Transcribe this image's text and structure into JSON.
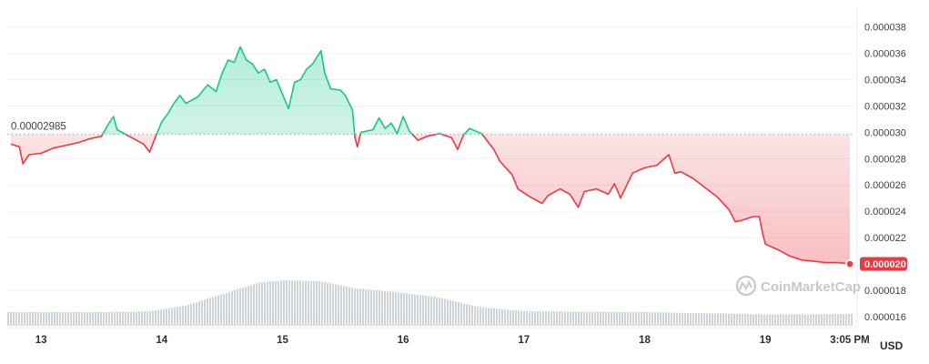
{
  "chart_data": {
    "type": "area",
    "reference_price": 2.985e-05,
    "reference_label": "0.00002985",
    "current_price": 2e-05,
    "current_label": "0.000020",
    "unit_label": "USD",
    "watermark": "CoinMarketCap",
    "ylim": [
      1.53e-05,
      3.95e-05
    ],
    "y_ticks": [
      {
        "value": 3.8e-05,
        "label": "0.000038"
      },
      {
        "value": 3.6e-05,
        "label": "0.000036"
      },
      {
        "value": 3.4e-05,
        "label": "0.000034"
      },
      {
        "value": 3.2e-05,
        "label": "0.000032"
      },
      {
        "value": 3e-05,
        "label": "0.000030"
      },
      {
        "value": 2.8e-05,
        "label": "0.000028"
      },
      {
        "value": 2.6e-05,
        "label": "0.000026"
      },
      {
        "value": 2.4e-05,
        "label": "0.000024"
      },
      {
        "value": 2.2e-05,
        "label": "0.000022"
      },
      {
        "value": 1.8e-05,
        "label": "0.000018"
      },
      {
        "value": 1.6e-05,
        "label": "0.000016"
      }
    ],
    "x_ticks": [
      {
        "t": 13,
        "label": "13"
      },
      {
        "t": 14,
        "label": "14"
      },
      {
        "t": 15,
        "label": "15"
      },
      {
        "t": 16,
        "label": "16"
      },
      {
        "t": 17,
        "label": "17"
      },
      {
        "t": 18,
        "label": "18"
      },
      {
        "t": 19,
        "label": "19"
      },
      {
        "t": 19.7,
        "label": "3:05 PM"
      }
    ],
    "xlim": [
      12.72,
      19.73
    ],
    "colors": {
      "up": "#16c784",
      "down": "#ea3943",
      "volume": "#cfd3da",
      "grid": "#eff2f5",
      "axis": "#e8ebef"
    },
    "price_series": [
      [
        12.75,
        2.91e-05
      ],
      [
        12.82,
        2.89e-05
      ],
      [
        12.85,
        2.76e-05
      ],
      [
        12.9,
        2.83e-05
      ],
      [
        13.0,
        2.84e-05
      ],
      [
        13.1,
        2.88e-05
      ],
      [
        13.2,
        2.9e-05
      ],
      [
        13.3,
        2.92e-05
      ],
      [
        13.4,
        2.95e-05
      ],
      [
        13.5,
        2.97e-05
      ],
      [
        13.55,
        3.05e-05
      ],
      [
        13.6,
        3.12e-05
      ],
      [
        13.63,
        3.02e-05
      ],
      [
        13.75,
        2.96e-05
      ],
      [
        13.85,
        2.91e-05
      ],
      [
        13.9,
        2.85e-05
      ],
      [
        13.95,
        2.97e-05
      ],
      [
        14.0,
        3.08e-05
      ],
      [
        14.05,
        3.14e-05
      ],
      [
        14.1,
        3.22e-05
      ],
      [
        14.15,
        3.28e-05
      ],
      [
        14.2,
        3.22e-05
      ],
      [
        14.3,
        3.27e-05
      ],
      [
        14.38,
        3.36e-05
      ],
      [
        14.45,
        3.31e-05
      ],
      [
        14.5,
        3.45e-05
      ],
      [
        14.55,
        3.55e-05
      ],
      [
        14.6,
        3.53e-05
      ],
      [
        14.65,
        3.65e-05
      ],
      [
        14.7,
        3.55e-05
      ],
      [
        14.75,
        3.52e-05
      ],
      [
        14.8,
        3.45e-05
      ],
      [
        14.85,
        3.48e-05
      ],
      [
        14.9,
        3.38e-05
      ],
      [
        14.95,
        3.4e-05
      ],
      [
        15.05,
        3.18e-05
      ],
      [
        15.1,
        3.38e-05
      ],
      [
        15.15,
        3.4e-05
      ],
      [
        15.2,
        3.48e-05
      ],
      [
        15.25,
        3.52e-05
      ],
      [
        15.32,
        3.62e-05
      ],
      [
        15.35,
        3.45e-05
      ],
      [
        15.4,
        3.33e-05
      ],
      [
        15.48,
        3.32e-05
      ],
      [
        15.52,
        3.28e-05
      ],
      [
        15.58,
        3.17e-05
      ],
      [
        15.6,
        2.96e-05
      ],
      [
        15.62,
        2.89e-05
      ],
      [
        15.65,
        3e-05
      ],
      [
        15.75,
        3.02e-05
      ],
      [
        15.8,
        3.11e-05
      ],
      [
        15.85,
        3.03e-05
      ],
      [
        15.9,
        3.07e-05
      ],
      [
        15.95,
        2.99e-05
      ],
      [
        16.0,
        3.12e-05
      ],
      [
        16.05,
        3.01e-05
      ],
      [
        16.12,
        2.94e-05
      ],
      [
        16.2,
        2.97e-05
      ],
      [
        16.3,
        2.99e-05
      ],
      [
        16.4,
        2.96e-05
      ],
      [
        16.45,
        2.87e-05
      ],
      [
        16.5,
        2.98e-05
      ],
      [
        16.55,
        3.03e-05
      ],
      [
        16.65,
        2.99e-05
      ],
      [
        16.7,
        2.93e-05
      ],
      [
        16.75,
        2.87e-05
      ],
      [
        16.8,
        2.78e-05
      ],
      [
        16.85,
        2.73e-05
      ],
      [
        16.9,
        2.68e-05
      ],
      [
        16.95,
        2.57e-05
      ],
      [
        17.05,
        2.51e-05
      ],
      [
        17.15,
        2.46e-05
      ],
      [
        17.2,
        2.52e-05
      ],
      [
        17.3,
        2.57e-05
      ],
      [
        17.38,
        2.53e-05
      ],
      [
        17.45,
        2.43e-05
      ],
      [
        17.5,
        2.55e-05
      ],
      [
        17.6,
        2.57e-05
      ],
      [
        17.7,
        2.53e-05
      ],
      [
        17.75,
        2.61e-05
      ],
      [
        17.8,
        2.5e-05
      ],
      [
        17.9,
        2.69e-05
      ],
      [
        18.0,
        2.73e-05
      ],
      [
        18.1,
        2.75e-05
      ],
      [
        18.2,
        2.83e-05
      ],
      [
        18.25,
        2.69e-05
      ],
      [
        18.3,
        2.7e-05
      ],
      [
        18.4,
        2.65e-05
      ],
      [
        18.5,
        2.58e-05
      ],
      [
        18.6,
        2.51e-05
      ],
      [
        18.7,
        2.41e-05
      ],
      [
        18.75,
        2.32e-05
      ],
      [
        18.8,
        2.33e-05
      ],
      [
        18.9,
        2.36e-05
      ],
      [
        18.95,
        2.36e-05
      ],
      [
        18.98,
        2.22e-05
      ],
      [
        19.0,
        2.15e-05
      ],
      [
        19.1,
        2.11e-05
      ],
      [
        19.2,
        2.06e-05
      ],
      [
        19.3,
        2.03e-05
      ],
      [
        19.4,
        2.02e-05
      ],
      [
        19.5,
        2.01e-05
      ],
      [
        19.6,
        2.01e-05
      ],
      [
        19.7,
        2e-05
      ]
    ],
    "volume_profile": [
      [
        12.72,
        0.3
      ],
      [
        13.5,
        0.3
      ],
      [
        13.9,
        0.32
      ],
      [
        14.2,
        0.45
      ],
      [
        14.5,
        0.7
      ],
      [
        14.8,
        0.95
      ],
      [
        15.0,
        1.0
      ],
      [
        15.3,
        0.98
      ],
      [
        15.6,
        0.82
      ],
      [
        16.0,
        0.72
      ],
      [
        16.3,
        0.62
      ],
      [
        16.6,
        0.42
      ],
      [
        17.0,
        0.32
      ],
      [
        18.0,
        0.3
      ],
      [
        19.0,
        0.25
      ],
      [
        19.73,
        0.26
      ]
    ]
  }
}
